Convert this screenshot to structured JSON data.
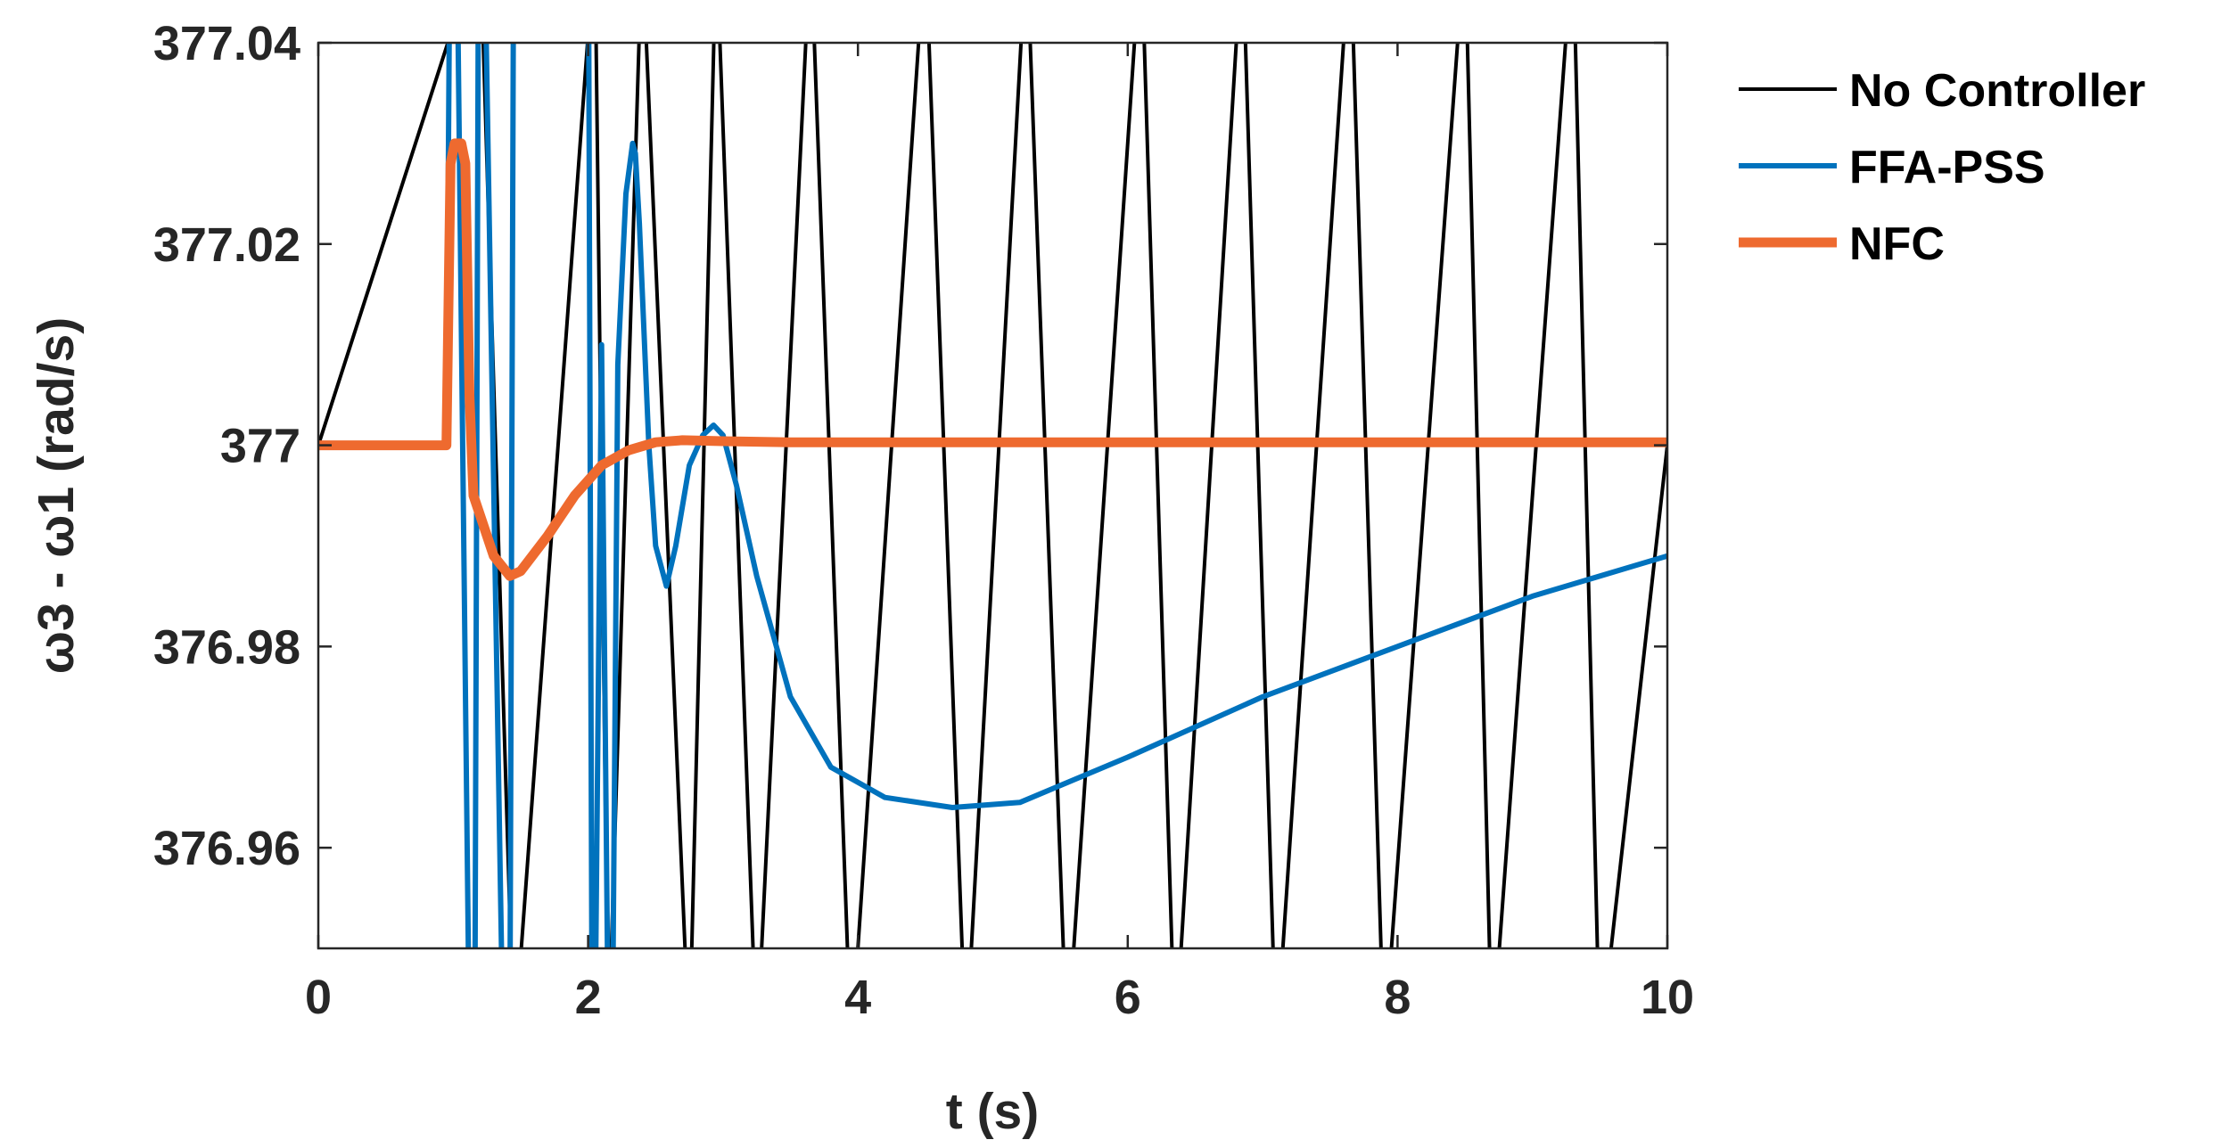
{
  "chart_data": {
    "type": "line",
    "xlabel": "t (s)",
    "ylabel": "ω3 - ω1 (rad/s)",
    "xlim": [
      0,
      10
    ],
    "ylim": [
      376.95,
      377.04
    ],
    "xticks": [
      0,
      2,
      4,
      6,
      8,
      10
    ],
    "xtick_labels": [
      "0",
      "2",
      "4",
      "6",
      "8",
      "10"
    ],
    "yticks": [
      376.96,
      376.98,
      377,
      377.02,
      377.04
    ],
    "ytick_labels": [
      "376.96",
      "376.98",
      "377",
      "377.02",
      "377.04"
    ],
    "grid": false,
    "legend_position": "outside-right-top",
    "series": [
      {
        "name": "No Controller",
        "color": "#000000",
        "note_style": "oscillation exceeding axis limits",
        "crossing_times": [
          1.2,
          1.45,
          2.05,
          2.15,
          2.4,
          2.75,
          2.95,
          3.25,
          3.65,
          3.95,
          4.5,
          4.8,
          5.25,
          5.55,
          6.1,
          6.35,
          6.85,
          7.1,
          7.65,
          7.9,
          8.5,
          8.7,
          9.3,
          9.5
        ],
        "x": [
          0,
          1.2,
          1.45,
          2.05,
          2.15,
          2.4,
          2.75,
          2.95,
          3.25,
          3.65,
          3.95,
          4.5,
          4.8,
          5.25,
          5.55,
          6.1,
          6.35,
          6.85,
          7.1,
          7.65,
          7.9,
          8.5,
          8.7,
          9.3,
          9.5,
          10
        ],
        "y": [
          377,
          377.05,
          376.94,
          377.05,
          376.94,
          377.05,
          376.94,
          377.05,
          376.94,
          377.05,
          376.94,
          377.05,
          376.94,
          377.05,
          376.94,
          377.05,
          376.94,
          377.05,
          376.94,
          377.05,
          376.94,
          377.05,
          376.94,
          377.05,
          376.94,
          377
        ]
      },
      {
        "name": "FFA-PSS",
        "color": "#0072BD",
        "x": [
          0,
          0.95,
          0.98,
          1.02,
          1.12,
          1.16,
          1.19,
          1.22,
          1.37,
          1.42,
          1.45,
          2.0,
          2.03,
          2.05,
          2.1,
          2.15,
          2.18,
          2.22,
          2.28,
          2.33,
          2.35,
          2.38,
          2.45,
          2.5,
          2.58,
          2.65,
          2.75,
          2.85,
          2.93,
          3.0,
          3.1,
          3.25,
          3.5,
          3.8,
          4.2,
          4.7,
          5.2,
          6.0,
          7.0,
          8.0,
          9.0,
          10.0
        ],
        "y": [
          377,
          377,
          377.06,
          377.06,
          376.94,
          376.94,
          377.06,
          377.06,
          376.94,
          376.94,
          377.06,
          377.06,
          376.94,
          376.94,
          377.01,
          376.94,
          376.94,
          377.008,
          377.025,
          377.03,
          377.029,
          377.022,
          377.0,
          376.99,
          376.986,
          376.99,
          376.998,
          377.001,
          377.002,
          377.001,
          376.996,
          376.987,
          376.975,
          376.968,
          376.965,
          376.964,
          376.9645,
          376.969,
          376.975,
          376.98,
          376.985,
          376.989
        ]
      },
      {
        "name": "NFC",
        "color": "#EE6A2F",
        "x": [
          0,
          0.95,
          0.98,
          1.01,
          1.03,
          1.06,
          1.09,
          1.12,
          1.15,
          1.2,
          1.3,
          1.42,
          1.5,
          1.7,
          1.9,
          2.1,
          2.3,
          2.5,
          2.7,
          3.0,
          3.5,
          10.0
        ],
        "y": [
          377,
          377,
          377.028,
          377.03,
          377.03,
          377.03,
          377.028,
          377.005,
          376.995,
          376.993,
          376.989,
          376.987,
          376.9875,
          376.991,
          376.995,
          376.998,
          376.9995,
          377.0003,
          377.0005,
          377.0004,
          377.0003,
          377.0003
        ]
      }
    ]
  }
}
